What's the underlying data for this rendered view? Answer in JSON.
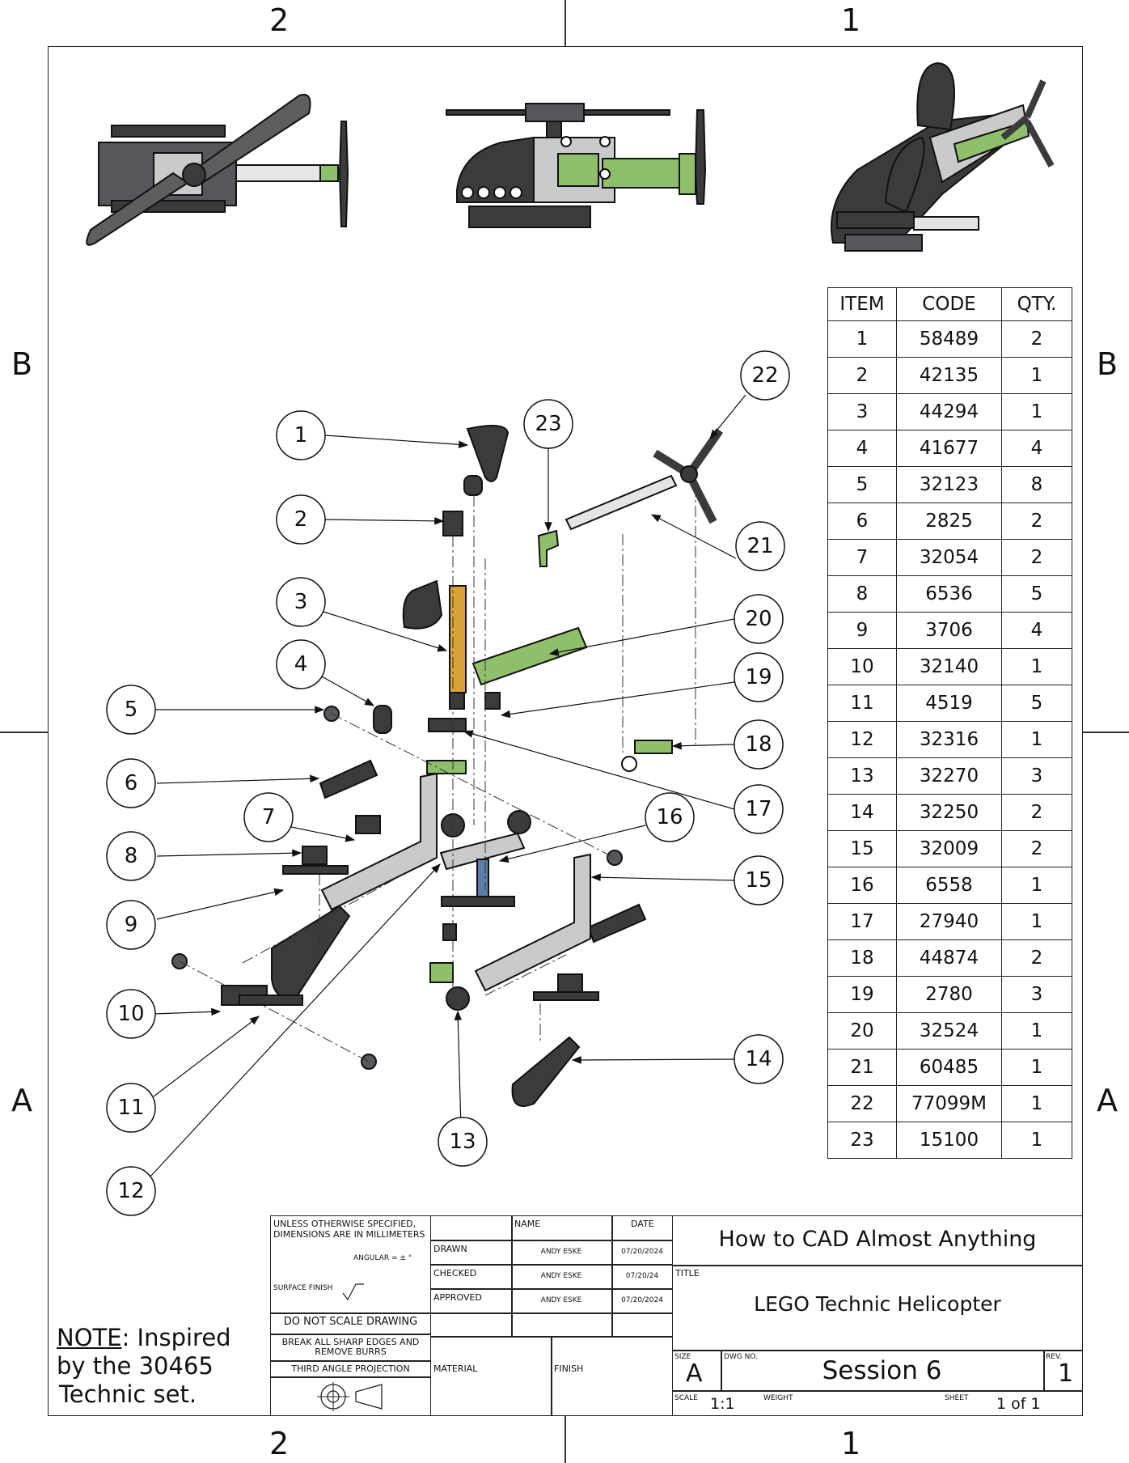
{
  "zones": {
    "top": [
      "2",
      "1"
    ],
    "bottom": [
      "2",
      "1"
    ],
    "left": [
      "B",
      "A"
    ],
    "right": [
      "B",
      "A"
    ]
  },
  "bom": {
    "headers": [
      "ITEM",
      "CODE",
      "QTY."
    ],
    "rows": [
      [
        "1",
        "58489",
        "2"
      ],
      [
        "2",
        "42135",
        "1"
      ],
      [
        "3",
        "44294",
        "1"
      ],
      [
        "4",
        "41677",
        "4"
      ],
      [
        "5",
        "32123",
        "8"
      ],
      [
        "6",
        "2825",
        "2"
      ],
      [
        "7",
        "32054",
        "2"
      ],
      [
        "8",
        "6536",
        "5"
      ],
      [
        "9",
        "3706",
        "4"
      ],
      [
        "10",
        "32140",
        "1"
      ],
      [
        "11",
        "4519",
        "5"
      ],
      [
        "12",
        "32316",
        "1"
      ],
      [
        "13",
        "32270",
        "3"
      ],
      [
        "14",
        "32250",
        "2"
      ],
      [
        "15",
        "32009",
        "2"
      ],
      [
        "16",
        "6558",
        "1"
      ],
      [
        "17",
        "27940",
        "1"
      ],
      [
        "18",
        "44874",
        "2"
      ],
      [
        "19",
        "2780",
        "3"
      ],
      [
        "20",
        "32524",
        "1"
      ],
      [
        "21",
        "60485",
        "1"
      ],
      [
        "22",
        "77099M",
        "1"
      ],
      [
        "23",
        "15100",
        "1"
      ]
    ]
  },
  "callouts": [
    "1",
    "2",
    "3",
    "4",
    "5",
    "6",
    "7",
    "8",
    "9",
    "10",
    "11",
    "12",
    "13",
    "14",
    "15",
    "16",
    "17",
    "18",
    "19",
    "20",
    "21",
    "22",
    "23"
  ],
  "title_block": {
    "spec_line1": "UNLESS OTHERWISE SPECIFIED,",
    "spec_line2": "DIMENSIONS ARE IN MILLIMETERS",
    "angular": "ANGULAR = ± °",
    "surface_finish": "SURFACE FINISH",
    "do_not_scale": "DO NOT SCALE DRAWING",
    "break_edges_1": "BREAK ALL SHARP EDGES AND",
    "break_edges_2": "REMOVE BURRS",
    "projection": "THIRD ANGLE PROJECTION",
    "name_header": "NAME",
    "date_header": "DATE",
    "drawn_label": "DRAWN",
    "checked_label": "CHECKED",
    "approved_label": "APPROVED",
    "drawn_name": "ANDY ESKE",
    "checked_name": "ANDY ESKE",
    "approved_name": "ANDY ESKE",
    "drawn_date": "07/20/2024",
    "checked_date": "07/20/24",
    "approved_date": "07/20/2024",
    "material_label": "MATERIAL",
    "finish_label": "FINISH",
    "company": "How to CAD Almost Anything",
    "title_label": "TITLE",
    "title": "LEGO Technic Helicopter",
    "size_label": "SIZE",
    "size": "A",
    "dwg_no_label": "DWG NO.",
    "dwg_no": "Session 6",
    "rev_label": "REV.",
    "rev": "1",
    "scale_label": "SCALE",
    "scale": "1:1",
    "weight_label": "WEIGHT",
    "sheet_label": "SHEET",
    "sheet": "1 of 1"
  },
  "note": {
    "prefix": "NOTE",
    "line1": ": Inspired",
    "line2": "by the 30465",
    "line3": "Technic set."
  },
  "colors": {
    "part_dark": "#3a3b3d",
    "part_grey": "#c9cacc",
    "part_green": "#8fbf6a",
    "axle_orange": "#d9a23a",
    "pin_blue": "#5b7fa8"
  }
}
